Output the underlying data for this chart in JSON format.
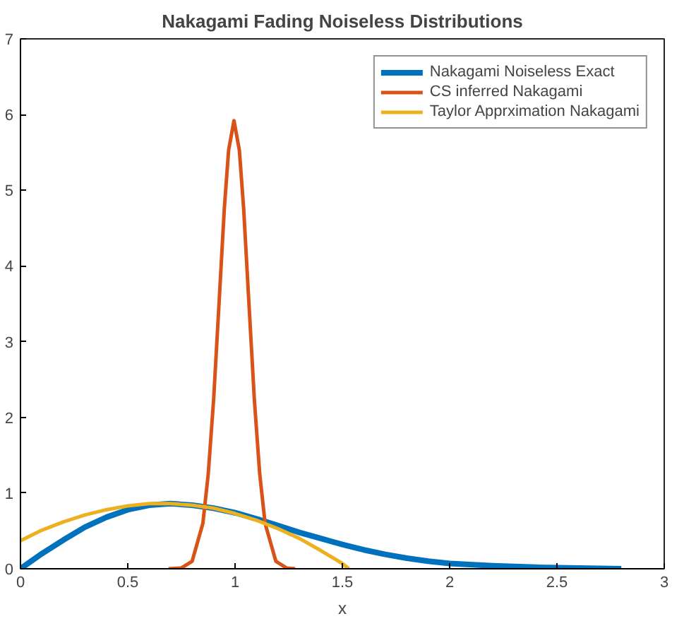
{
  "chart_data": {
    "type": "line",
    "title": "Nakagami Fading Noiseless Distributions",
    "xlabel": "x",
    "xlim": [
      0,
      3
    ],
    "xticks": [
      0,
      0.5,
      1,
      1.5,
      2,
      2.5,
      3
    ],
    "ylim": [
      0,
      7
    ],
    "yticks": [
      0,
      1,
      2,
      3,
      4,
      5,
      6,
      7
    ],
    "grid": false,
    "legend": "top right",
    "line_style": "solid",
    "marker": "none",
    "series": [
      {
        "name": "Nakagami Noiseless Exact",
        "color": "#0072bd",
        "x": [
          0,
          0.1,
          0.2,
          0.3,
          0.4,
          0.5,
          0.6,
          0.7,
          0.8,
          0.9,
          1.0,
          1.1,
          1.2,
          1.3,
          1.4,
          1.5,
          1.6,
          1.7,
          1.8,
          1.9,
          2.0,
          2.2,
          2.4,
          2.6,
          2.8
        ],
        "values": [
          0,
          0.2,
          0.38,
          0.55,
          0.68,
          0.78,
          0.84,
          0.86,
          0.84,
          0.8,
          0.74,
          0.66,
          0.57,
          0.48,
          0.4,
          0.32,
          0.25,
          0.19,
          0.14,
          0.1,
          0.07,
          0.04,
          0.02,
          0.01,
          0
        ]
      },
      {
        "name": "CS inferred Nakagami",
        "color": "#d95319",
        "x": [
          0.69,
          0.75,
          0.8,
          0.85,
          0.875,
          0.9,
          0.925,
          0.95,
          0.97,
          0.995,
          1.02,
          1.04,
          1.065,
          1.09,
          1.115,
          1.14,
          1.19,
          1.24,
          1.28
        ],
        "values": [
          0,
          0.01,
          0.1,
          0.6,
          1.25,
          2.23,
          3.49,
          4.76,
          5.53,
          5.92,
          5.53,
          4.76,
          3.49,
          2.23,
          1.25,
          0.6,
          0.1,
          0.01,
          0
        ]
      },
      {
        "name": "Taylor Apprximation Nakagami",
        "color": "#edb120",
        "x": [
          0,
          0.1,
          0.2,
          0.3,
          0.4,
          0.5,
          0.6,
          0.7,
          0.8,
          0.9,
          1.0,
          1.1,
          1.2,
          1.3,
          1.4,
          1.5,
          1.53
        ],
        "values": [
          0.37,
          0.51,
          0.62,
          0.71,
          0.78,
          0.83,
          0.86,
          0.86,
          0.84,
          0.8,
          0.73,
          0.64,
          0.53,
          0.4,
          0.24,
          0.07,
          0
        ]
      }
    ]
  }
}
